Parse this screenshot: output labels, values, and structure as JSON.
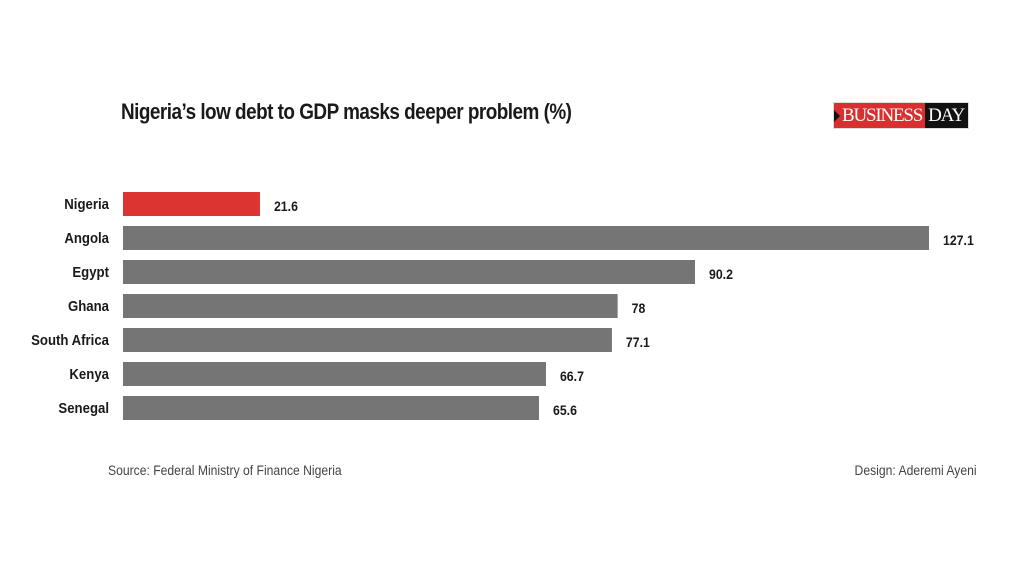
{
  "header": {
    "title": "Nigeria’s low debt to GDP masks deeper problem (%)",
    "logo": {
      "part1": "BUSINESS",
      "part2": "DAY"
    }
  },
  "footer": {
    "source": "Source: Federal Ministry of Finance Nigeria",
    "design": "Design: Aderemi Ayeni"
  },
  "colors": {
    "highlight": "#dc3431",
    "bar": "#757575"
  },
  "chart_data": {
    "type": "bar",
    "orientation": "horizontal",
    "title": "Nigeria’s low debt to GDP masks deeper problem (%)",
    "xlabel": "",
    "ylabel": "",
    "categories": [
      "Nigeria",
      "Angola",
      "Egypt",
      "Ghana",
      "South Africa",
      "Kenya",
      "Senegal"
    ],
    "values": [
      21.6,
      127.1,
      90.2,
      78,
      77.1,
      66.7,
      65.6
    ],
    "value_labels": [
      "21.6",
      "127.1",
      "90.2",
      "78",
      "77.1",
      "66.7",
      "65.6"
    ],
    "highlight_index": 0,
    "xlim": [
      0,
      127.1
    ],
    "grid": false,
    "legend": "none"
  }
}
